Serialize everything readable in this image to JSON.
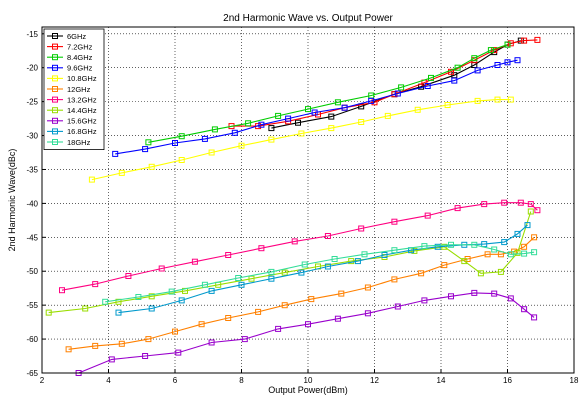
{
  "chart_data": {
    "type": "line",
    "title": "2nd Harmonic Wave vs. Output Power",
    "xlabel": "Output Power(dBm)",
    "ylabel": "2nd Harmonic Wave(dBc)",
    "xlim": [
      2,
      18
    ],
    "ylim": [
      -65,
      -14
    ],
    "xticks": [
      "2",
      "4",
      "6",
      "8",
      "10",
      "12",
      "14",
      "16",
      "18"
    ],
    "yticks": [
      "-15",
      "-20",
      "-25",
      "-30",
      "-35",
      "-40",
      "-45",
      "-50",
      "-55",
      "-60",
      "-65"
    ],
    "grid": true,
    "legend": "top-left",
    "series": [
      {
        "name": "6GHz",
        "color": "#000000",
        "marker": "square",
        "x": [
          8.9,
          9.7,
          10.7,
          11.6,
          12.6,
          13.4,
          14.4,
          15.0,
          15.6,
          16.0,
          16.4
        ],
        "y": [
          -28.9,
          -28.1,
          -27.2,
          -25.7,
          -23.9,
          -22.8,
          -21.1,
          -19.6,
          -17.7,
          -16.6,
          -16.0
        ]
      },
      {
        "name": "7.2GHz",
        "color": "#ff0000",
        "marker": "square",
        "x": [
          7.7,
          8.5,
          9.4,
          10.3,
          11.1,
          12.0,
          12.6,
          13.5,
          14.3,
          15.0,
          15.6,
          16.1,
          16.5,
          16.9
        ],
        "y": [
          -28.6,
          -28.6,
          -27.9,
          -26.9,
          -25.9,
          -25.1,
          -23.9,
          -22.2,
          -20.6,
          -18.9,
          -17.4,
          -16.4,
          -16.0,
          -15.9
        ]
      },
      {
        "name": "8.4GHz",
        "color": "#00cc00",
        "marker": "square",
        "x": [
          5.2,
          6.2,
          7.2,
          8.2,
          9.1,
          10.0,
          10.9,
          11.9,
          12.8,
          13.7,
          14.5,
          15.0,
          15.5,
          16.0
        ],
        "y": [
          -31.0,
          -30.1,
          -29.1,
          -28.2,
          -27.1,
          -26.1,
          -25.1,
          -24.1,
          -22.9,
          -21.5,
          -20.0,
          -18.6,
          -17.4,
          -16.6
        ]
      },
      {
        "name": "9.6GHz",
        "color": "#0000ff",
        "marker": "square",
        "x": [
          4.2,
          5.1,
          6.0,
          6.9,
          7.8,
          8.6,
          9.4,
          10.2,
          11.1,
          11.9,
          12.7,
          13.6,
          14.4,
          15.1,
          15.7,
          16.0,
          16.3
        ],
        "y": [
          -32.7,
          -32.0,
          -31.1,
          -30.5,
          -29.6,
          -28.4,
          -27.5,
          -26.6,
          -25.9,
          -24.9,
          -23.8,
          -22.7,
          -21.9,
          -20.4,
          -19.6,
          -19.2,
          -18.9
        ]
      },
      {
        "name": "10.8GHz",
        "color": "#ffff00",
        "marker": "square",
        "x": [
          3.5,
          4.4,
          5.3,
          6.2,
          7.1,
          8.0,
          8.9,
          9.8,
          10.7,
          11.6,
          12.4,
          13.3,
          14.2,
          15.1,
          15.7,
          16.1
        ],
        "y": [
          -36.5,
          -35.5,
          -34.6,
          -33.6,
          -32.5,
          -31.5,
          -30.6,
          -29.7,
          -28.9,
          -28.0,
          -27.1,
          -26.2,
          -25.5,
          -24.9,
          -24.7,
          -24.7
        ]
      },
      {
        "name": "12GHz",
        "color": "#ff8000",
        "marker": "square",
        "x": [
          2.8,
          3.6,
          4.4,
          5.2,
          6.0,
          6.8,
          7.6,
          8.5,
          9.3,
          10.1,
          11.0,
          11.8,
          12.6,
          13.4,
          14.1,
          14.8,
          15.4,
          15.8,
          16.2,
          16.5,
          16.8
        ],
        "y": [
          -61.5,
          -61.0,
          -60.7,
          -60.0,
          -58.9,
          -57.8,
          -56.9,
          -56.0,
          -55.0,
          -54.1,
          -53.3,
          -52.4,
          -51.2,
          -50.3,
          -49.1,
          -48.2,
          -47.5,
          -47.5,
          -47.1,
          -46.4,
          -45.0
        ]
      },
      {
        "name": "13.2GHz",
        "color": "#ff0080",
        "marker": "square",
        "x": [
          2.6,
          3.6,
          4.6,
          5.6,
          6.6,
          7.6,
          8.6,
          9.6,
          10.6,
          11.6,
          12.6,
          13.6,
          14.5,
          15.3,
          15.9,
          16.4,
          16.7,
          16.9
        ],
        "y": [
          -52.8,
          -51.9,
          -50.7,
          -49.6,
          -48.6,
          -47.6,
          -46.6,
          -45.6,
          -44.8,
          -43.7,
          -42.7,
          -41.8,
          -40.7,
          -40.1,
          -39.9,
          -39.9,
          -40.1,
          -41.0
        ]
      },
      {
        "name": "14.4GHz",
        "color": "#99dd00",
        "marker": "square",
        "x": [
          2.2,
          3.3,
          4.3,
          5.3,
          6.3,
          7.3,
          8.3,
          9.3,
          10.3,
          11.3,
          12.3,
          13.2,
          14.1,
          14.7,
          15.2,
          15.8,
          16.3,
          16.7
        ],
        "y": [
          -56.1,
          -55.5,
          -54.5,
          -53.7,
          -52.9,
          -52.0,
          -51.1,
          -50.2,
          -49.3,
          -48.5,
          -47.9,
          -47.0,
          -46.4,
          -48.5,
          -50.3,
          -50.1,
          -47.3,
          -41.2
        ]
      },
      {
        "name": "15.6GHz",
        "color": "#9900cc",
        "marker": "square",
        "x": [
          3.1,
          4.1,
          5.1,
          6.1,
          7.1,
          8.1,
          9.1,
          10.0,
          10.9,
          11.8,
          12.7,
          13.5,
          14.3,
          15.0,
          15.6,
          16.1,
          16.5,
          16.8
        ],
        "y": [
          -65.0,
          -63.0,
          -62.5,
          -62.0,
          -60.5,
          -60.0,
          -58.5,
          -57.8,
          -57.0,
          -56.2,
          -55.2,
          -54.3,
          -53.7,
          -53.2,
          -53.3,
          -54.0,
          -55.6,
          -56.8
        ]
      },
      {
        "name": "16.8GHz",
        "color": "#0099cc",
        "marker": "square",
        "x": [
          4.3,
          5.3,
          6.2,
          7.1,
          8.0,
          8.9,
          9.8,
          10.6,
          11.5,
          12.3,
          13.1,
          13.9,
          14.7,
          15.3,
          15.9,
          16.3,
          16.6
        ],
        "y": [
          -56.1,
          -55.5,
          -54.3,
          -52.9,
          -52.0,
          -51.1,
          -50.2,
          -49.3,
          -48.5,
          -47.6,
          -46.9,
          -46.4,
          -46.1,
          -46.0,
          -45.7,
          -44.5,
          -43.2
        ]
      },
      {
        "name": "18GHz",
        "color": "#33dd99",
        "marker": "square",
        "x": [
          3.9,
          4.9,
          5.9,
          6.9,
          7.9,
          8.9,
          9.9,
          10.8,
          11.7,
          12.6,
          13.5,
          14.3,
          15.0,
          15.6,
          16.1,
          16.5,
          16.8
        ],
        "y": [
          -54.5,
          -53.8,
          -53.0,
          -52.0,
          -51.0,
          -50.1,
          -49.0,
          -48.2,
          -47.5,
          -46.9,
          -46.3,
          -46.1,
          -46.1,
          -46.8,
          -47.5,
          -47.4,
          -47.2
        ]
      }
    ]
  }
}
